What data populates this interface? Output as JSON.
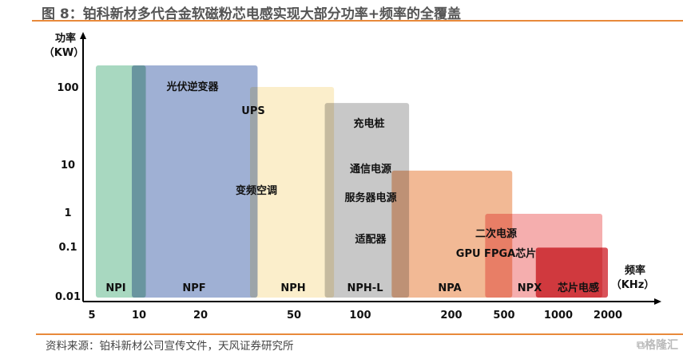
{
  "title": "图 8：铂科新材多代合金软磁粉芯电感实现大部分功率+频率的全覆盖",
  "source": "资料来源：铂科新材公司宣传文件，天风证券研究所",
  "watermark": "格隆汇",
  "chart_data": {
    "type": "range-rect",
    "xlabel": "频率",
    "xunit": "（KHz）",
    "ylabel": "功率",
    "yunit": "（KW）",
    "xscale": "log",
    "yscale": "log",
    "xticks": [
      5,
      10,
      20,
      50,
      100,
      200,
      500,
      1000,
      2000
    ],
    "yticks": [
      0.01,
      0.1,
      1,
      10,
      100
    ],
    "series": [
      {
        "name": "NPI",
        "x": [
          5.3,
          10.8
        ],
        "y": [
          0.01,
          190
        ],
        "color": "#a8d8c0"
      },
      {
        "name": "NPF",
        "x": [
          9.0,
          35
        ],
        "y": [
          0.01,
          190
        ],
        "color": "#9fb0d4"
      },
      {
        "name": "NPH",
        "x": [
          32.5,
          76
        ],
        "y": [
          0.01,
          100
        ],
        "color": "#fbeecb"
      },
      {
        "name": "NPH-L",
        "x": [
          69,
          145
        ],
        "y": [
          0.01,
          62
        ],
        "color": "#c8c8c8"
      },
      {
        "name": "NPA",
        "x": [
          127,
          555
        ],
        "y": [
          0.01,
          7.4
        ],
        "color": "#f2b995"
      },
      {
        "name": "NPX",
        "x": [
          360,
          1850
        ],
        "y": [
          0.01,
          0.9
        ],
        "color": "#f5aeae"
      },
      {
        "name": "芯片电感",
        "x": [
          750,
          2000
        ],
        "y": [
          0.01,
          0.095
        ],
        "color": "#d9535a"
      }
    ],
    "annotations": [
      "光伏逆变器",
      "UPS",
      "充电桩",
      "通信电源",
      "变频空调",
      "服务器电源",
      "适配器",
      "二次电源",
      "GPU FPGA芯片"
    ]
  }
}
